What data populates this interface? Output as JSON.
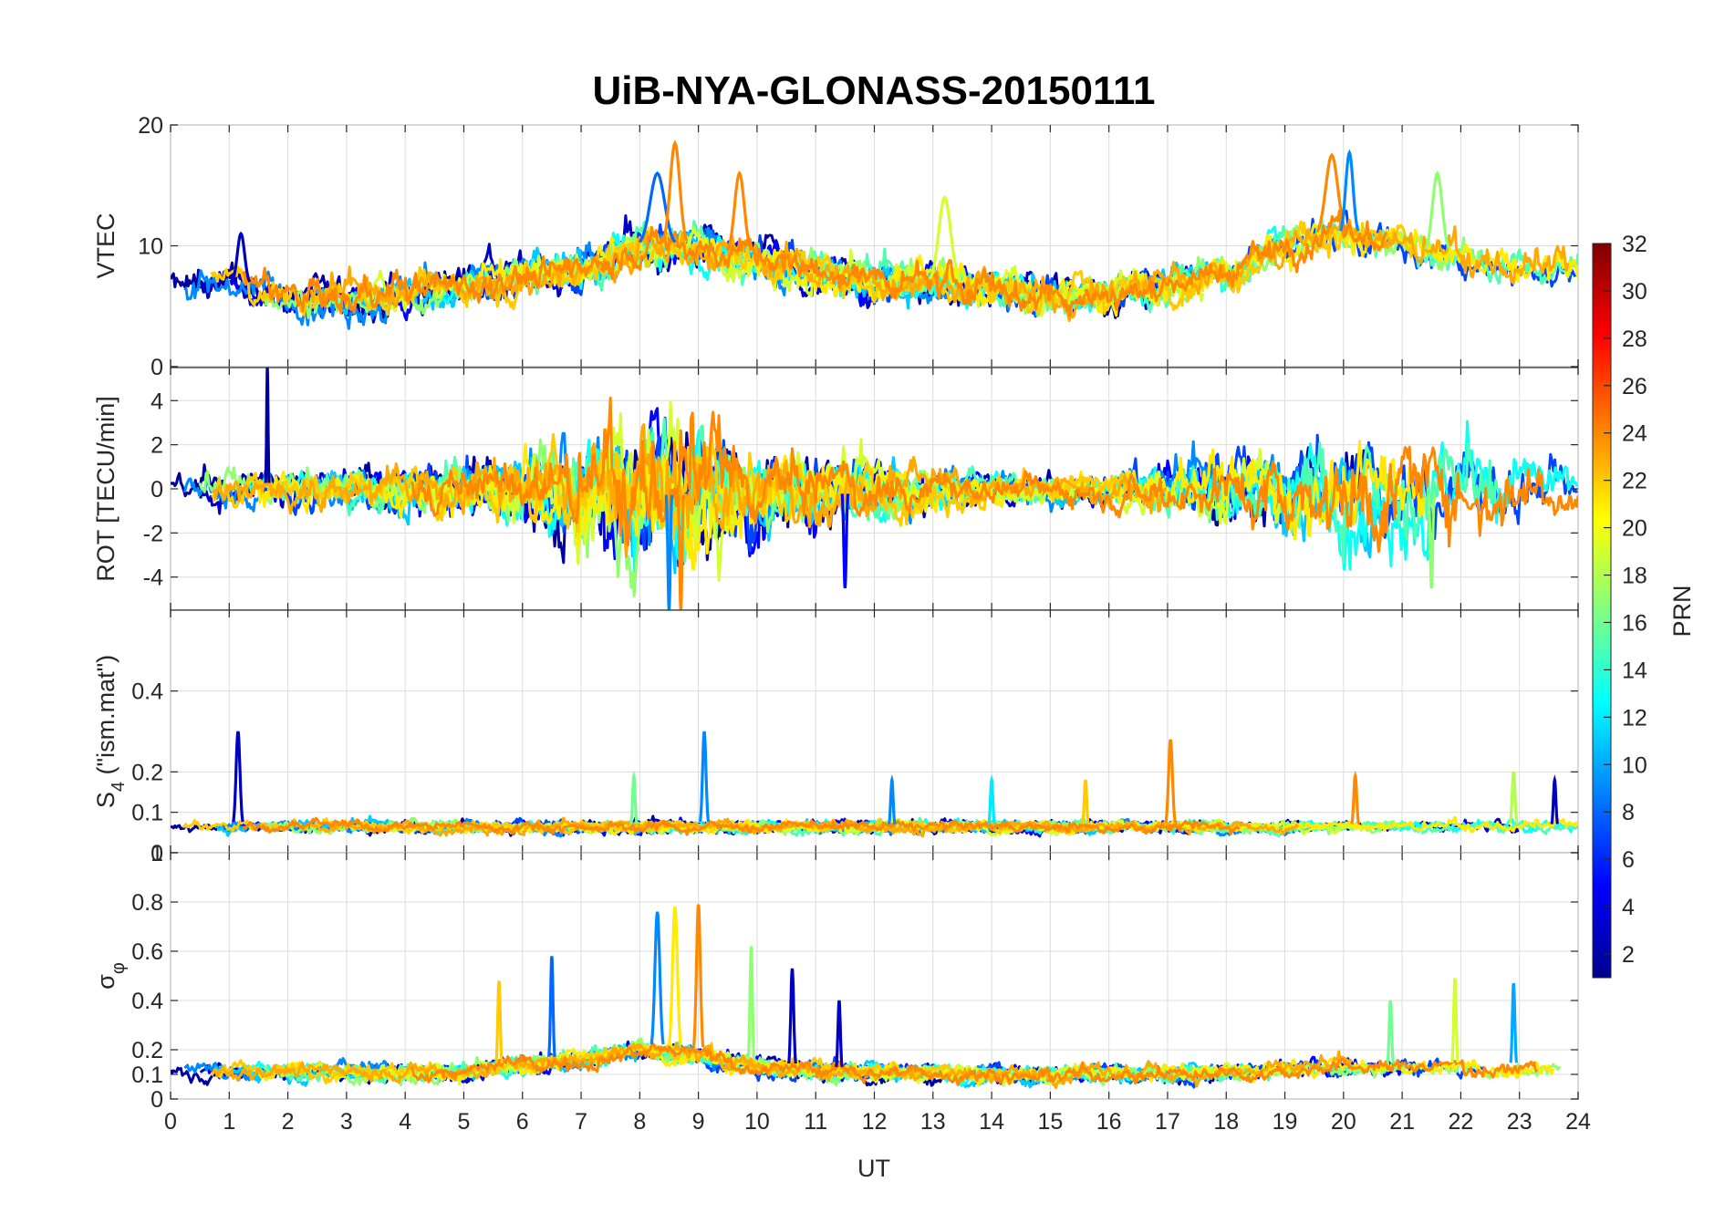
{
  "chart_data": {
    "type": "line",
    "title": "UiB-NYA-GLONASS-20150111",
    "xlabel": "UT",
    "xlim": [
      0,
      24
    ],
    "xticks": [
      "0",
      "1",
      "2",
      "3",
      "4",
      "5",
      "6",
      "7",
      "8",
      "9",
      "10",
      "11",
      "12",
      "13",
      "14",
      "15",
      "16",
      "17",
      "18",
      "19",
      "20",
      "21",
      "22",
      "23",
      "24"
    ],
    "colorbar": {
      "label": "PRN",
      "range": [
        1,
        32
      ],
      "ticks": [
        "2",
        "4",
        "6",
        "8",
        "10",
        "12",
        "14",
        "16",
        "18",
        "20",
        "22",
        "24",
        "26",
        "28",
        "30",
        "32"
      ],
      "colormap": "jet"
    },
    "panels": [
      {
        "ylabel": "VTEC",
        "ylim": [
          0,
          20
        ],
        "yticks": [
          "0",
          "10",
          "20"
        ],
        "baseline": [
          [
            0,
            6.5
          ],
          [
            1,
            7
          ],
          [
            2,
            6
          ],
          [
            3,
            5.5
          ],
          [
            4,
            6
          ],
          [
            5,
            7
          ],
          [
            6,
            7.5
          ],
          [
            7,
            8
          ],
          [
            8,
            10
          ],
          [
            9,
            10
          ],
          [
            10,
            9
          ],
          [
            11,
            8
          ],
          [
            12,
            7
          ],
          [
            13,
            7
          ],
          [
            14,
            6.5
          ],
          [
            15,
            6
          ],
          [
            16,
            6
          ],
          [
            17,
            7
          ],
          [
            18,
            8
          ],
          [
            19,
            10
          ],
          [
            20,
            11
          ],
          [
            21,
            10
          ],
          [
            22,
            9
          ],
          [
            23,
            8
          ],
          [
            24,
            8
          ]
        ],
        "noise": 1.3,
        "events": [
          {
            "x": 1.2,
            "y": 11,
            "w": 0.15,
            "prn": 3
          },
          {
            "x": 8.3,
            "y": 16,
            "w": 0.3,
            "prn": 8
          },
          {
            "x": 8.6,
            "y": 18.5,
            "w": 0.2,
            "prn": 24
          },
          {
            "x": 9.7,
            "y": 16,
            "w": 0.2,
            "prn": 24
          },
          {
            "x": 13.2,
            "y": 14,
            "w": 0.25,
            "prn": 19
          },
          {
            "x": 19.8,
            "y": 17.5,
            "w": 0.25,
            "prn": 24
          },
          {
            "x": 20.1,
            "y": 17.7,
            "w": 0.15,
            "prn": 9
          },
          {
            "x": 21.6,
            "y": 16,
            "w": 0.2,
            "prn": 17
          }
        ]
      },
      {
        "ylabel": "ROT [TECU/min]",
        "ylim": [
          -5.5,
          5.5
        ],
        "yticks": [
          "-4",
          "-2",
          "0",
          "2",
          "4"
        ],
        "yticks_values": [
          -4,
          -2,
          0,
          2,
          4
        ],
        "baseline": [
          [
            0,
            0
          ],
          [
            24,
            0
          ]
        ],
        "noise_profile": [
          [
            0,
            0.6
          ],
          [
            4,
            0.8
          ],
          [
            6,
            1.3
          ],
          [
            8,
            2.5
          ],
          [
            9,
            2.5
          ],
          [
            10,
            1.5
          ],
          [
            12,
            1.0
          ],
          [
            14,
            0.5
          ],
          [
            16,
            0.6
          ],
          [
            18,
            1.2
          ],
          [
            20,
            2.0
          ],
          [
            22,
            1.8
          ],
          [
            24,
            0.8
          ]
        ],
        "events": [
          {
            "x": 1.65,
            "y": 5.5,
            "w": 0.03,
            "prn": 2
          },
          {
            "x": 8.5,
            "y": -5.5,
            "w": 0.05,
            "prn": 9
          },
          {
            "x": 8.7,
            "y": -5.5,
            "w": 0.05,
            "prn": 24
          },
          {
            "x": 11.5,
            "y": -4.5,
            "w": 0.05,
            "prn": 5
          },
          {
            "x": 21.5,
            "y": -4.5,
            "w": 0.05,
            "prn": 17
          }
        ]
      },
      {
        "ylabel": "S4 (\"ism.mat\")",
        "ylabel_main": "S",
        "ylabel_sub": "4",
        "ylabel_rest": " (\"ism.mat\")",
        "ylim": [
          0,
          0.6
        ],
        "yticks": [
          "0",
          "0.1",
          "0.2",
          "0.4"
        ],
        "yticks_values": [
          0,
          0.1,
          0.2,
          0.4
        ],
        "baseline": [
          [
            0,
            0.065
          ],
          [
            24,
            0.065
          ]
        ],
        "noise": 0.012,
        "events": [
          {
            "x": 1.15,
            "y": 0.3,
            "w": 0.08,
            "prn": 3
          },
          {
            "x": 9.1,
            "y": 0.3,
            "w": 0.07,
            "prn": 9
          },
          {
            "x": 17.05,
            "y": 0.28,
            "w": 0.08,
            "prn": 24
          },
          {
            "x": 20.2,
            "y": 0.19,
            "w": 0.06,
            "prn": 24
          },
          {
            "x": 22.9,
            "y": 0.2,
            "w": 0.06,
            "prn": 18
          },
          {
            "x": 7.9,
            "y": 0.19,
            "w": 0.05,
            "prn": 16
          },
          {
            "x": 12.3,
            "y": 0.18,
            "w": 0.05,
            "prn": 9
          },
          {
            "x": 14.0,
            "y": 0.18,
            "w": 0.05,
            "prn": 12
          },
          {
            "x": 15.6,
            "y": 0.18,
            "w": 0.05,
            "prn": 22
          },
          {
            "x": 23.6,
            "y": 0.18,
            "w": 0.05,
            "prn": 3
          }
        ]
      },
      {
        "ylabel": "σ φ",
        "ylabel_main": "σ",
        "ylabel_sub": "φ",
        "ylim": [
          0,
          1
        ],
        "yticks": [
          "0",
          "0.1",
          "0.2",
          "0.4",
          "0.6",
          "0.8",
          "1"
        ],
        "yticks_values": [
          0,
          0.1,
          0.2,
          0.4,
          0.6,
          0.8,
          1
        ],
        "baseline": [
          [
            0,
            0.12
          ],
          [
            5,
            0.11
          ],
          [
            6,
            0.14
          ],
          [
            7,
            0.16
          ],
          [
            8,
            0.2
          ],
          [
            9,
            0.18
          ],
          [
            10,
            0.13
          ],
          [
            12,
            0.11
          ],
          [
            15,
            0.1
          ],
          [
            18,
            0.11
          ],
          [
            20,
            0.13
          ],
          [
            22,
            0.13
          ],
          [
            24,
            0.13
          ]
        ],
        "noise": 0.03,
        "events": [
          {
            "x": 5.6,
            "y": 0.48,
            "w": 0.05,
            "prn": 22
          },
          {
            "x": 6.5,
            "y": 0.58,
            "w": 0.05,
            "prn": 8
          },
          {
            "x": 8.3,
            "y": 0.76,
            "w": 0.1,
            "prn": 9
          },
          {
            "x": 8.6,
            "y": 0.78,
            "w": 0.1,
            "prn": 21
          },
          {
            "x": 9.0,
            "y": 0.79,
            "w": 0.08,
            "prn": 24
          },
          {
            "x": 9.9,
            "y": 0.62,
            "w": 0.05,
            "prn": 17
          },
          {
            "x": 10.6,
            "y": 0.53,
            "w": 0.06,
            "prn": 3
          },
          {
            "x": 11.4,
            "y": 0.4,
            "w": 0.05,
            "prn": 3
          },
          {
            "x": 21.9,
            "y": 0.49,
            "w": 0.05,
            "prn": 19
          },
          {
            "x": 22.9,
            "y": 0.47,
            "w": 0.05,
            "prn": 10
          },
          {
            "x": 20.8,
            "y": 0.4,
            "w": 0.05,
            "prn": 16
          }
        ]
      }
    ],
    "series_prns": [
      2,
      3,
      5,
      7,
      9,
      11,
      13,
      15,
      17,
      19,
      21,
      22,
      23,
      24
    ]
  }
}
